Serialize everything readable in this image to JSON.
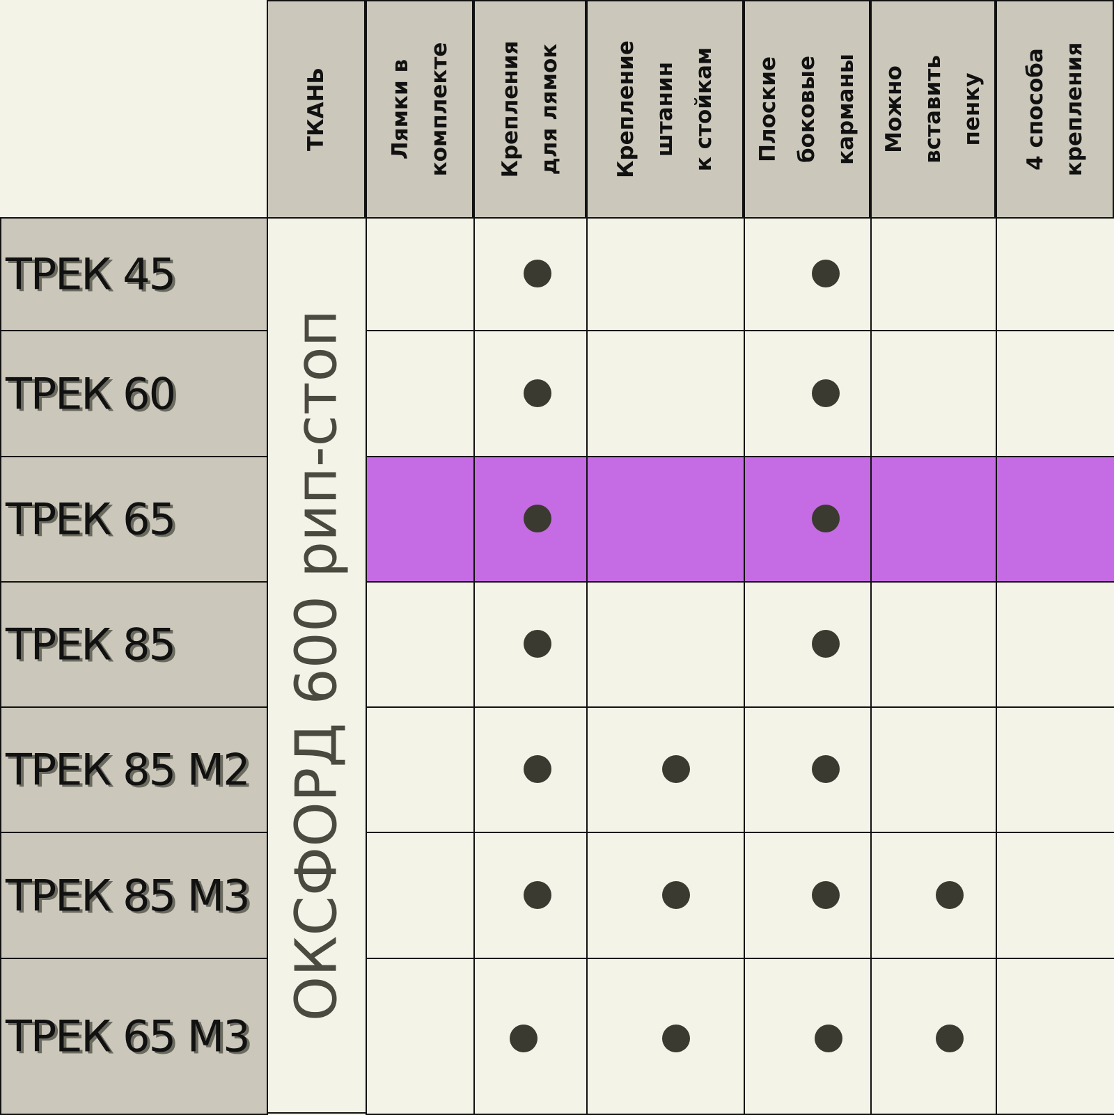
{
  "headers": [
    "ТКАНЬ",
    "Лямки в\nкомплекте",
    "Крепления\nдля лямок",
    "Крепление\nштанин\nк стойкам",
    "Плоские\nбоковые\nкарманы",
    "Можно\nвставить\nпенку",
    "4 способа\nкрепления"
  ],
  "fabric": "ОКСФОРД 600 рип-стоп",
  "rows": [
    {
      "name": "ТРЕК 45",
      "features": [
        false,
        true,
        false,
        true,
        false,
        false
      ]
    },
    {
      "name": "ТРЕК 60",
      "features": [
        false,
        true,
        false,
        true,
        false,
        false
      ]
    },
    {
      "name": "ТРЕК 65",
      "features": [
        false,
        true,
        false,
        true,
        false,
        false
      ],
      "highlight": true
    },
    {
      "name": "ТРЕК 85",
      "features": [
        false,
        true,
        false,
        true,
        false,
        false
      ]
    },
    {
      "name": "ТРЕК 85 М2",
      "features": [
        false,
        true,
        true,
        true,
        false,
        false
      ]
    },
    {
      "name": "ТРЕК 85 М3",
      "features": [
        false,
        true,
        true,
        true,
        true,
        false
      ]
    },
    {
      "name": "ТРЕК 65 М3",
      "features": [
        false,
        true,
        true,
        true,
        true,
        false
      ]
    }
  ],
  "colors": {
    "header_bg": "#cbc7bb",
    "body_bg": "#f4f3e8",
    "highlight_bg": "#c56be3",
    "dot": "#3b3a30"
  }
}
